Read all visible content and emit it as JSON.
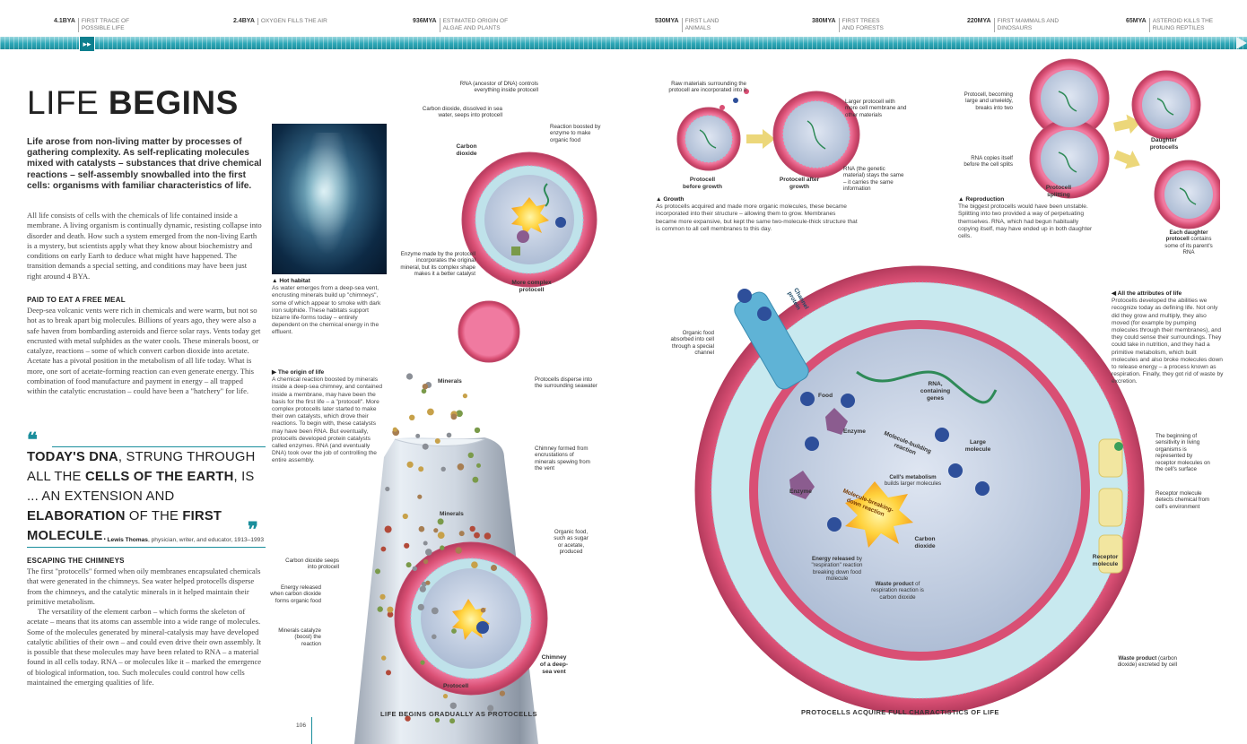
{
  "timeline": {
    "events": [
      {
        "date": "4.1BYA",
        "desc": "FIRST TRACE OF POSSIBLE LIFE"
      },
      {
        "date": "2.4BYA",
        "desc": "OXYGEN FILLS THE AIR"
      },
      {
        "date": "936MYA",
        "desc": "ESTIMATED ORIGIN OF ALGAE AND PLANTS"
      },
      {
        "date": "530MYA",
        "desc": "FIRST LAND ANIMALS"
      },
      {
        "date": "380MYA",
        "desc": "FIRST TREES AND FORESTS"
      },
      {
        "date": "220MYA",
        "desc": "FIRST MAMMALS AND DINOSAURS"
      },
      {
        "date": "65MYA",
        "desc": "ASTEROID KILLS THE RULING REPTILES"
      }
    ],
    "marker": "▸▸"
  },
  "title": {
    "light": "LIFE ",
    "bold": "BEGINS"
  },
  "intro": "Life arose from non-living matter by processes of gathering complexity. As self-replicating molecules mixed with catalysts – substances that drive chemical reactions – self-assembly snowballed into the first cells: organisms with familiar characteristics of life.",
  "body1": "All life consists of cells with the chemicals of life contained inside a membrane. A living organism is continually dynamic, resisting collapse into disorder and death. How such a system emerged from the non-living Earth is a mystery, but scientists apply what they know about biochemistry and conditions on early Earth to deduce what might have happened. The transition demands a special setting, and conditions may have been just right around 4 BYA.",
  "section1": {
    "heading": "PAID TO EAT A FREE MEAL",
    "text": "Deep-sea volcanic vents were rich in chemicals and were warm, but not so hot as to break apart big molecules. Billions of years ago, they were also a safe haven from bombarding asteroids and fierce solar rays. Vents today get encrusted with metal sulphides as the water cools. These minerals boost, or catalyze, reactions – some of which convert carbon dioxide into acetate. Acetate has a pivotal position in the metabolism of all life today. What is more, one sort of acetate-forming reaction can even generate energy. This combination of food manufacture and payment in energy – all trapped within the catalytic encrustation – could have been a \"hatchery\" for life."
  },
  "quote": {
    "open": "❝",
    "close": "❞",
    "p1": "TODAY'S DNA",
    "p2": ", STRUNG THROUGH ALL THE ",
    "p3": "CELLS OF THE EARTH",
    "p4": ", IS ... AN EXTENSION AND ",
    "p5": "ELABORATION",
    "p6": " OF THE ",
    "p7": "FIRST MOLECULE",
    "p8": ".",
    "author": "Lewis Thomas",
    "author_desc": ", physician, writer, and educator, 1913–1993"
  },
  "section2": {
    "heading": "ESCAPING THE CHIMNEYS",
    "p1": "The first \"protocells\" formed when oily membranes encapsulated chemicals that were generated in the chimneys. Sea water helped protocells disperse from the chimneys, and the catalytic minerals in it helped maintain their primitive metabolism.",
    "p2": "The versatility of the element carbon – which forms the skeleton of acetate – means that its atoms can assemble into a wide range of molecules. Some of the molecules generated by mineral-catalysis may have developed catalytic abilities of their own – and could even drive their own assembly. It is possible that these molecules may have been related to RNA – a material found in all cells today. RNA – or molecules like it – marked the emergence of biological information, too. Such molecules could control how cells maintained the emerging qualities of life."
  },
  "hot_habitat": {
    "heading": "Hot habitat",
    "text": "As water emerges from a deep-sea vent, encrusting minerals build up \"chimneys\", some of which appear to smoke with dark iron sulphide. These habitats support bizarre life-forms today – entirely dependent on the chemical energy in the effluent."
  },
  "origin": {
    "heading": "The origin of life",
    "text": "A chemical reaction boosted by minerals inside a deep-sea chimney, and contained inside a membrane, may have been the basis for the first life – a \"protocell\". More complex protocells later started to make their own catalysts, which drove their reactions. To begin with, these catalysts may have been RNA. But eventually, protocells developed protein catalysts called enzymes. RNA (and eventually DNA) took over the job of controlling the entire assembly."
  },
  "chimney_labels": {
    "rna": "RNA (ancestor of DNA) controls everything inside protocell",
    "co2_dissolved": "Carbon dioxide, dissolved in sea water, seeps into protocell",
    "carbon_dioxide": "Carbon dioxide",
    "reaction_boosted": "Reaction boosted by enzyme to make organic food",
    "enzyme_made": "Enzyme made by the protocell incorporates the original mineral, but its complex shape makes it a better catalyst",
    "more_complex": "More complex protocell",
    "disperse": "Protocells disperse into the surrounding seawater",
    "minerals_top": "Minerals",
    "chimney_formed": "Chimney formed from encrustations of minerals spewing from the vent",
    "minerals_mid": "Minerals",
    "organic_food": "Organic food, such as sugar or acetate, produced",
    "co2_seeps": "Carbon dioxide seeps into protocell",
    "energy_released": "Energy released when carbon dioxide forms organic food",
    "minerals_catalyze": "Minerals catalyze (boost) the reaction",
    "chimney_vent": "Chimney of a deep-sea vent",
    "protocell": "Protocell",
    "bottom_caption": "LIFE BEGINS GRADUALLY AS PROTOCELLS",
    "page_number": "106"
  },
  "growth": {
    "raw": "Raw materials surrounding the protocell are incorporated into it",
    "larger": "Larger protocell with more cell membrane and other materials",
    "before": "Protocell before growth",
    "after": "Protocell after growth",
    "rna_same": "RNA (the genetic material) stays the same – it carries the same information",
    "heading": "Growth",
    "text": "As protocells acquired and made more organic molecules, these became incorporated into their structure – allowing them to grow. Membranes became more expansive, but kept the same two-molecule-thick structure that is common to all cell membranes to this day."
  },
  "reproduction": {
    "becoming": "Protocell, becoming large and unwieldy, breaks into two",
    "copies": "RNA copies itself before the cell splits",
    "splitting": "Protocell splitting",
    "daughter": "Daughter protocells",
    "each_bold": "Each daughter protocell",
    "each_rest": " contains some of its parent's RNA",
    "heading": "Reproduction",
    "text": "The biggest protocells would have been unstable. Splitting into two provided a way of perpetuating themselves. RNA, which had begun habitually copying itself, may have ended up in both daughter cells."
  },
  "full_cell": {
    "organic_food": "Organic food absorbed into cell through a special channel",
    "channel_protein": "Channel protein",
    "food": "Food",
    "rna_genes": "RNA, containing genes",
    "enzyme1": "Enzyme",
    "building": "Molecule-building reaction",
    "large_molecule": "Large molecule",
    "metabolism_bold": "Cell's metabolism",
    "metabolism_rest": "builds larger molecules",
    "enzyme2": "Enzyme",
    "breaking": "Molecule-breaking-down reaction",
    "energy_bold": "Energy released",
    "energy_rest": " by \"respiration\" reaction breaking down food molecule",
    "co2": "Carbon dioxide",
    "waste_bold": "Waste product",
    "waste_rest": " of respiration reaction is carbon dioxide",
    "receptor": "Receptor molecule",
    "beginning": "The beginning of sensitivity in living organisms is represented by receptor molecules on the cell's surface",
    "receptor_detects": "Receptor molecule detects chemical from cell's environment",
    "waste_out_bold": "Waste product",
    "waste_out_rest": " (carbon dioxide) excreted by cell",
    "bottom_caption": "PROTOCELLS ACQUIRE FULL CHARACTISTICS OF LIFE"
  },
  "attributes": {
    "heading": "All the attributes of life",
    "text": "Protocells developed the abilities we recognize today as defining life. Not only did they grow and multiply, they also moved (for example by pumping molecules through their membranes), and they could sense their surroundings. They could take in nutrition, and they had a primitive metabolism, which built molecules and also broke molecules down to release energy – a process known as respiration. Finally, they got rid of waste by excretion."
  },
  "colors": {
    "accent": "#1a8e9c",
    "membrane": "#d94f74",
    "cytoplasm": "#b9c8dd",
    "molecule": "#2e4f9a"
  }
}
